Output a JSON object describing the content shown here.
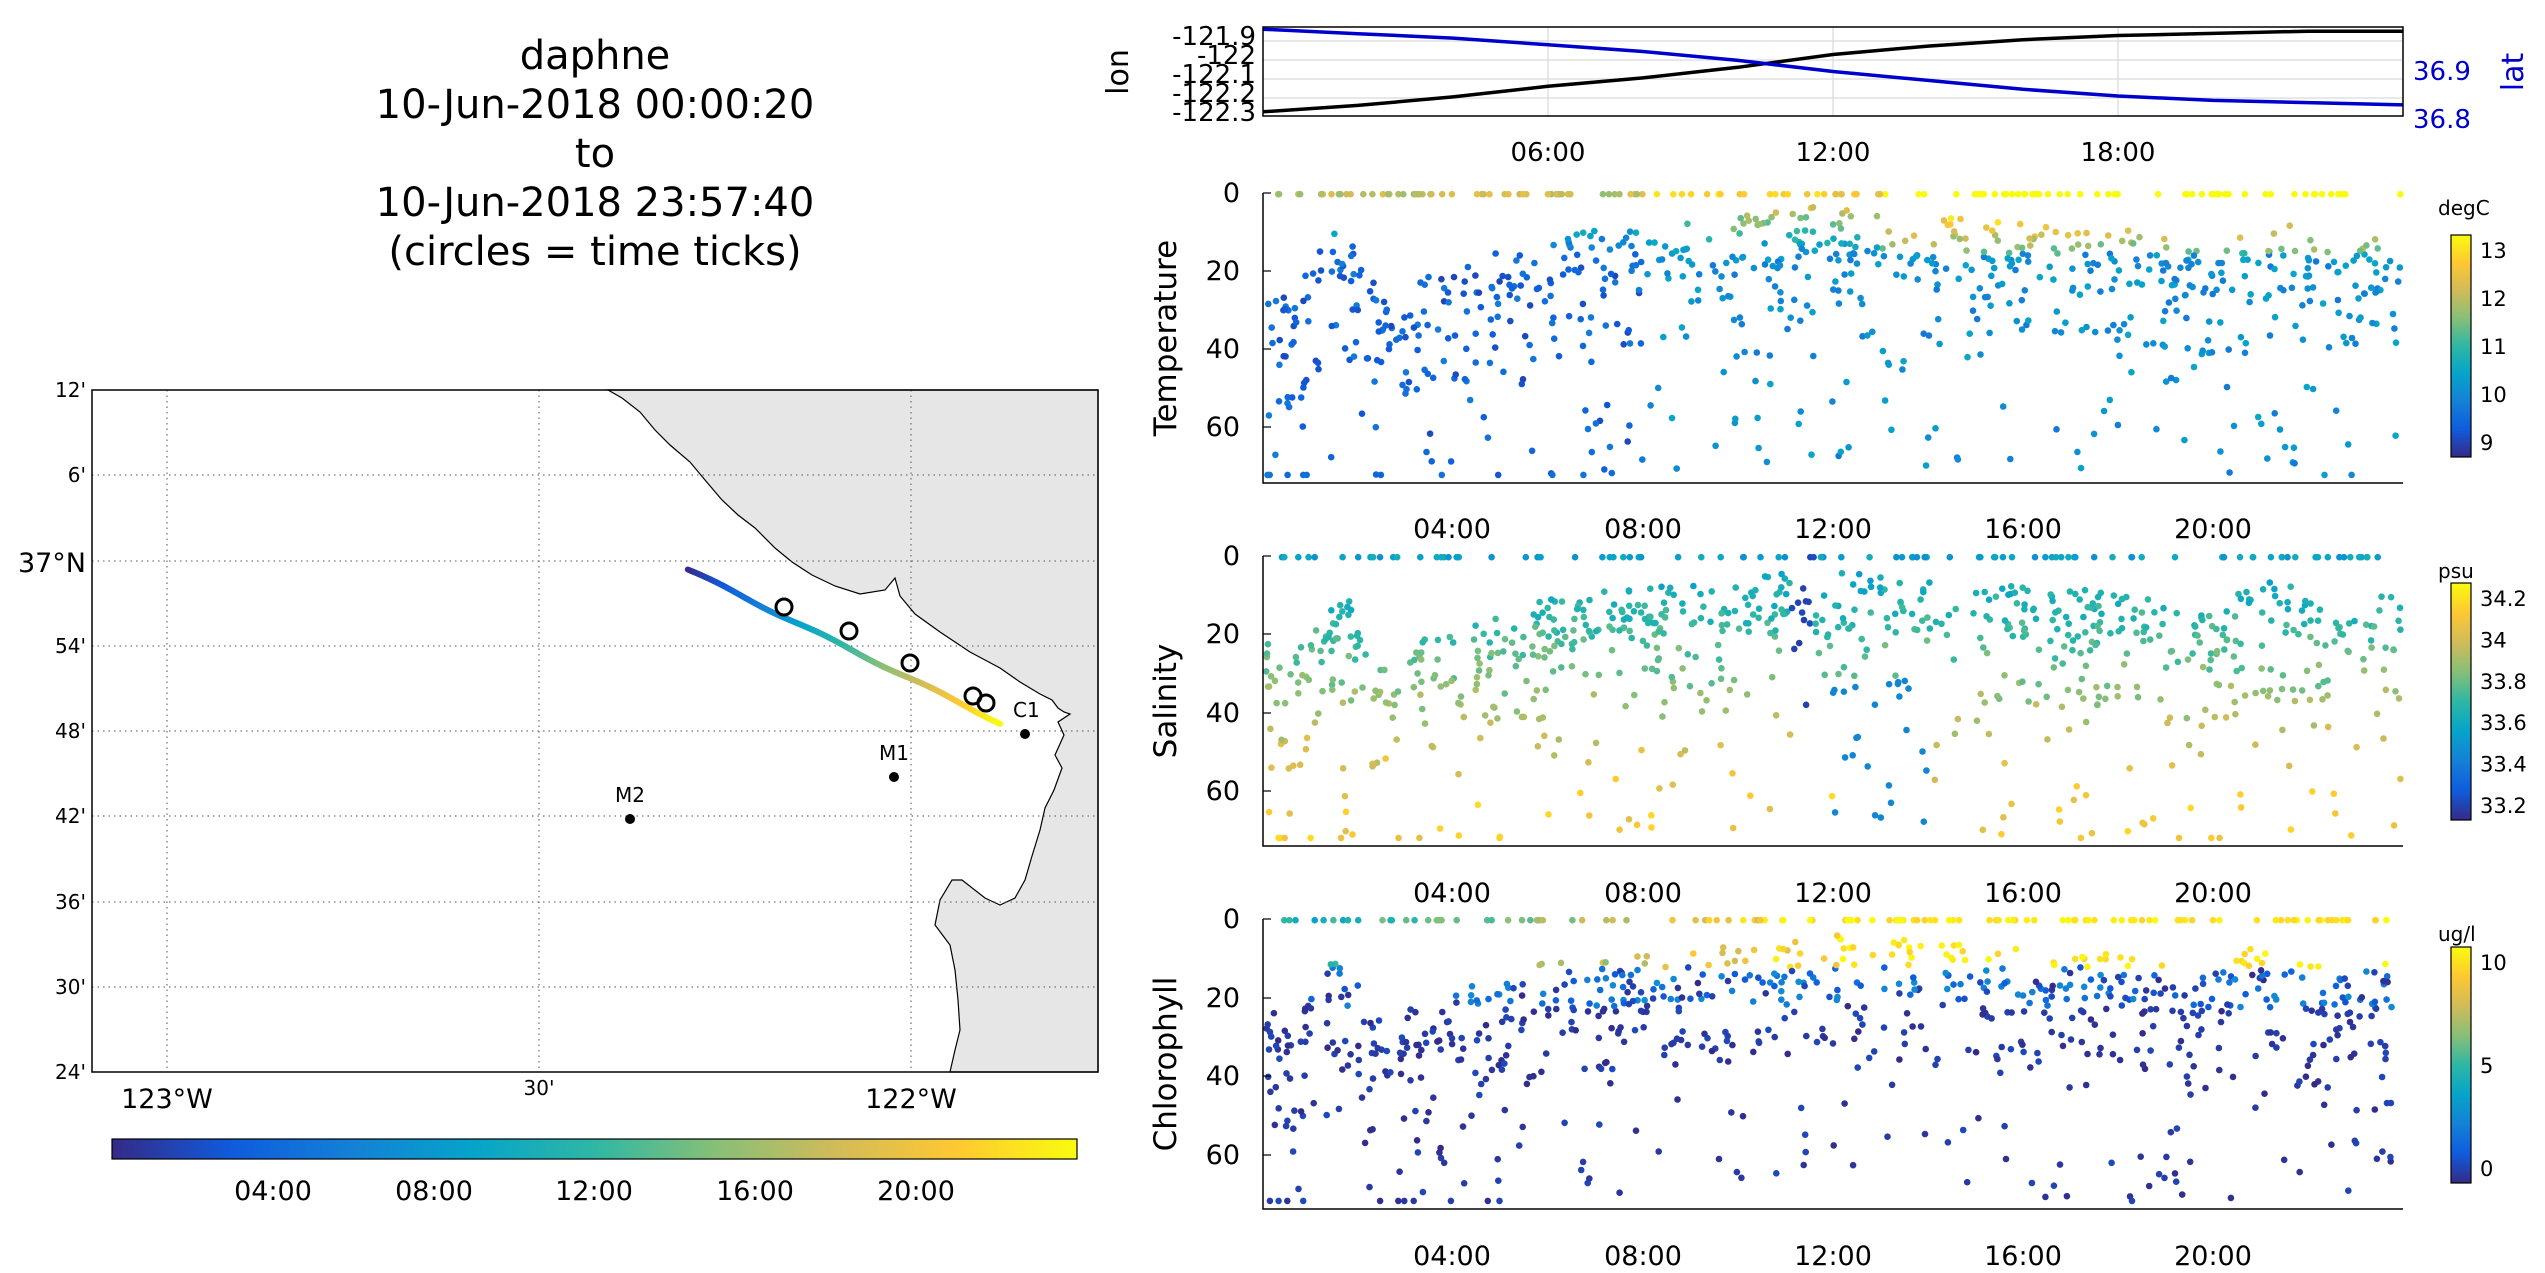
{
  "title": {
    "lines": [
      "daphne",
      "10-Jun-2018 00:00:20",
      "to",
      "10-Jun-2018 23:57:40",
      "(circles = time ticks)"
    ]
  },
  "map": {
    "lat_ticks": [
      "12'",
      "6'",
      "37°N",
      "54'",
      "48'",
      "42'",
      "36'",
      "30'",
      "24'"
    ],
    "lon_ticks": [
      "123°W",
      "30'",
      "122°W"
    ],
    "stations": [
      {
        "name": "C1",
        "lon": -121.85,
        "lat": 36.797
      },
      {
        "name": "M1",
        "lon": -122.03,
        "lat": 36.751
      },
      {
        "name": "M2",
        "lon": -122.39,
        "lat": 36.697
      }
    ],
    "track_start": {
      "lon": -122.3,
      "lat": 36.99
    },
    "track_end": {
      "lon": -121.88,
      "lat": 36.81
    },
    "time_tick_circles": 5,
    "colorbar_ticks": [
      "04:00",
      "08:00",
      "12:00",
      "16:00",
      "20:00"
    ]
  },
  "colors": {
    "lon_line": "#000000",
    "lat_line": "#0000cc",
    "land": "#e6e6e6",
    "parula": [
      "#352a87",
      "#0f5cdd",
      "#1481d6",
      "#06a4ca",
      "#2eb7a4",
      "#87bf77",
      "#d1bb59",
      "#fec832",
      "#f9fb0e"
    ]
  },
  "chart_data": [
    {
      "type": "line",
      "ylabel_left": "lon",
      "ylabel_right": "lat",
      "left_ticks": [
        "-121.9",
        "-122",
        "-122.1",
        "-122.2",
        "-122.3"
      ],
      "right_ticks": [
        "36.9",
        "36.8"
      ],
      "x_ticks": [
        "06:00",
        "12:00",
        "18:00"
      ],
      "ylim_left": [
        -122.31,
        -121.89
      ],
      "ylim_right": [
        36.78,
        36.98
      ],
      "series": [
        {
          "name": "lon",
          "x": [
            0,
            2,
            4,
            6,
            8,
            10,
            12,
            14,
            16,
            18,
            20,
            22,
            24
          ],
          "values": [
            -122.29,
            -122.26,
            -122.22,
            -122.17,
            -122.13,
            -122.08,
            -122.02,
            -121.98,
            -121.95,
            -121.93,
            -121.92,
            -121.91,
            -121.91
          ]
        },
        {
          "name": "lat",
          "x": [
            0,
            2,
            4,
            6,
            8,
            10,
            12,
            14,
            16,
            18,
            20,
            22,
            24
          ],
          "values": [
            36.975,
            36.965,
            36.955,
            36.94,
            36.925,
            36.905,
            36.88,
            36.86,
            36.84,
            36.825,
            36.815,
            36.81,
            36.805
          ]
        }
      ]
    },
    {
      "type": "scatter",
      "ylabel": "Temperature",
      "units": "degC",
      "ylim": [
        72,
        0
      ],
      "y_ticks": [
        "0",
        "20",
        "40",
        "60"
      ],
      "x_ticks": [
        "04:00",
        "08:00",
        "12:00",
        "16:00",
        "20:00"
      ],
      "clim": [
        8.5,
        13.1
      ],
      "colorbar_ticks": [
        "13",
        "12",
        "11",
        "10",
        "9"
      ]
    },
    {
      "type": "scatter",
      "ylabel": "Salinity",
      "units": "psu",
      "ylim": [
        72,
        0
      ],
      "y_ticks": [
        "0",
        "20",
        "40",
        "60"
      ],
      "x_ticks": [
        "04:00",
        "08:00",
        "12:00",
        "16:00",
        "20:00"
      ],
      "clim": [
        33.15,
        34.25
      ],
      "colorbar_ticks": [
        "34.2",
        "34",
        "33.8",
        "33.6",
        "33.4",
        "33.2"
      ]
    },
    {
      "type": "scatter",
      "ylabel": "Chlorophyll",
      "units": "ug/l",
      "ylim": [
        72,
        0
      ],
      "y_ticks": [
        "0",
        "20",
        "40",
        "60"
      ],
      "x_ticks": [
        "04:00",
        "08:00",
        "12:00",
        "16:00",
        "20:00"
      ],
      "clim": [
        0,
        10
      ],
      "colorbar_ticks": [
        "10",
        "5",
        "0"
      ]
    }
  ]
}
